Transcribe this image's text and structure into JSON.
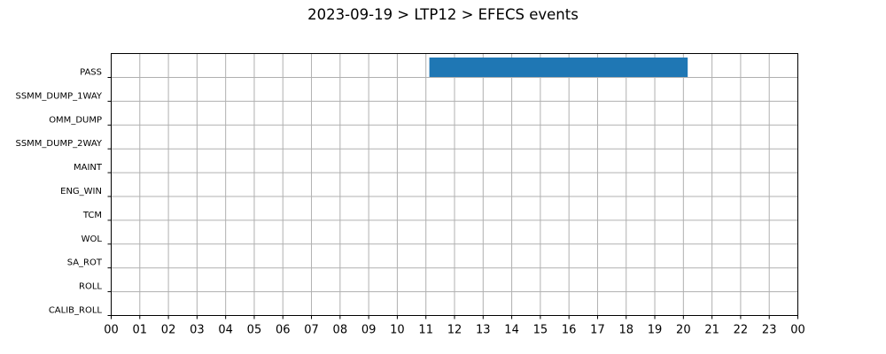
{
  "chart_data": {
    "type": "bar",
    "orientation": "horizontal",
    "title": "2023-09-19 > LTP12 > EFECS events",
    "xlabel": "",
    "ylabel": "",
    "categories": [
      "PASS",
      "SSMM_DUMP_1WAY",
      "OMM_DUMP",
      "SSMM_DUMP_2WAY",
      "MAINT",
      "ENG_WIN",
      "TCM",
      "WOL",
      "SA_ROT",
      "ROLL",
      "CALIB_ROLL"
    ],
    "x_tick_labels": [
      "00",
      "01",
      "02",
      "03",
      "04",
      "05",
      "06",
      "07",
      "08",
      "09",
      "10",
      "11",
      "12",
      "13",
      "14",
      "15",
      "16",
      "17",
      "18",
      "19",
      "20",
      "21",
      "22",
      "23",
      "00"
    ],
    "xlim": [
      0,
      24
    ],
    "grid": true,
    "colors": {
      "bar": "#1f77b4"
    },
    "events": [
      {
        "category": "PASS",
        "start": 11.12,
        "end": 20.15
      }
    ]
  }
}
